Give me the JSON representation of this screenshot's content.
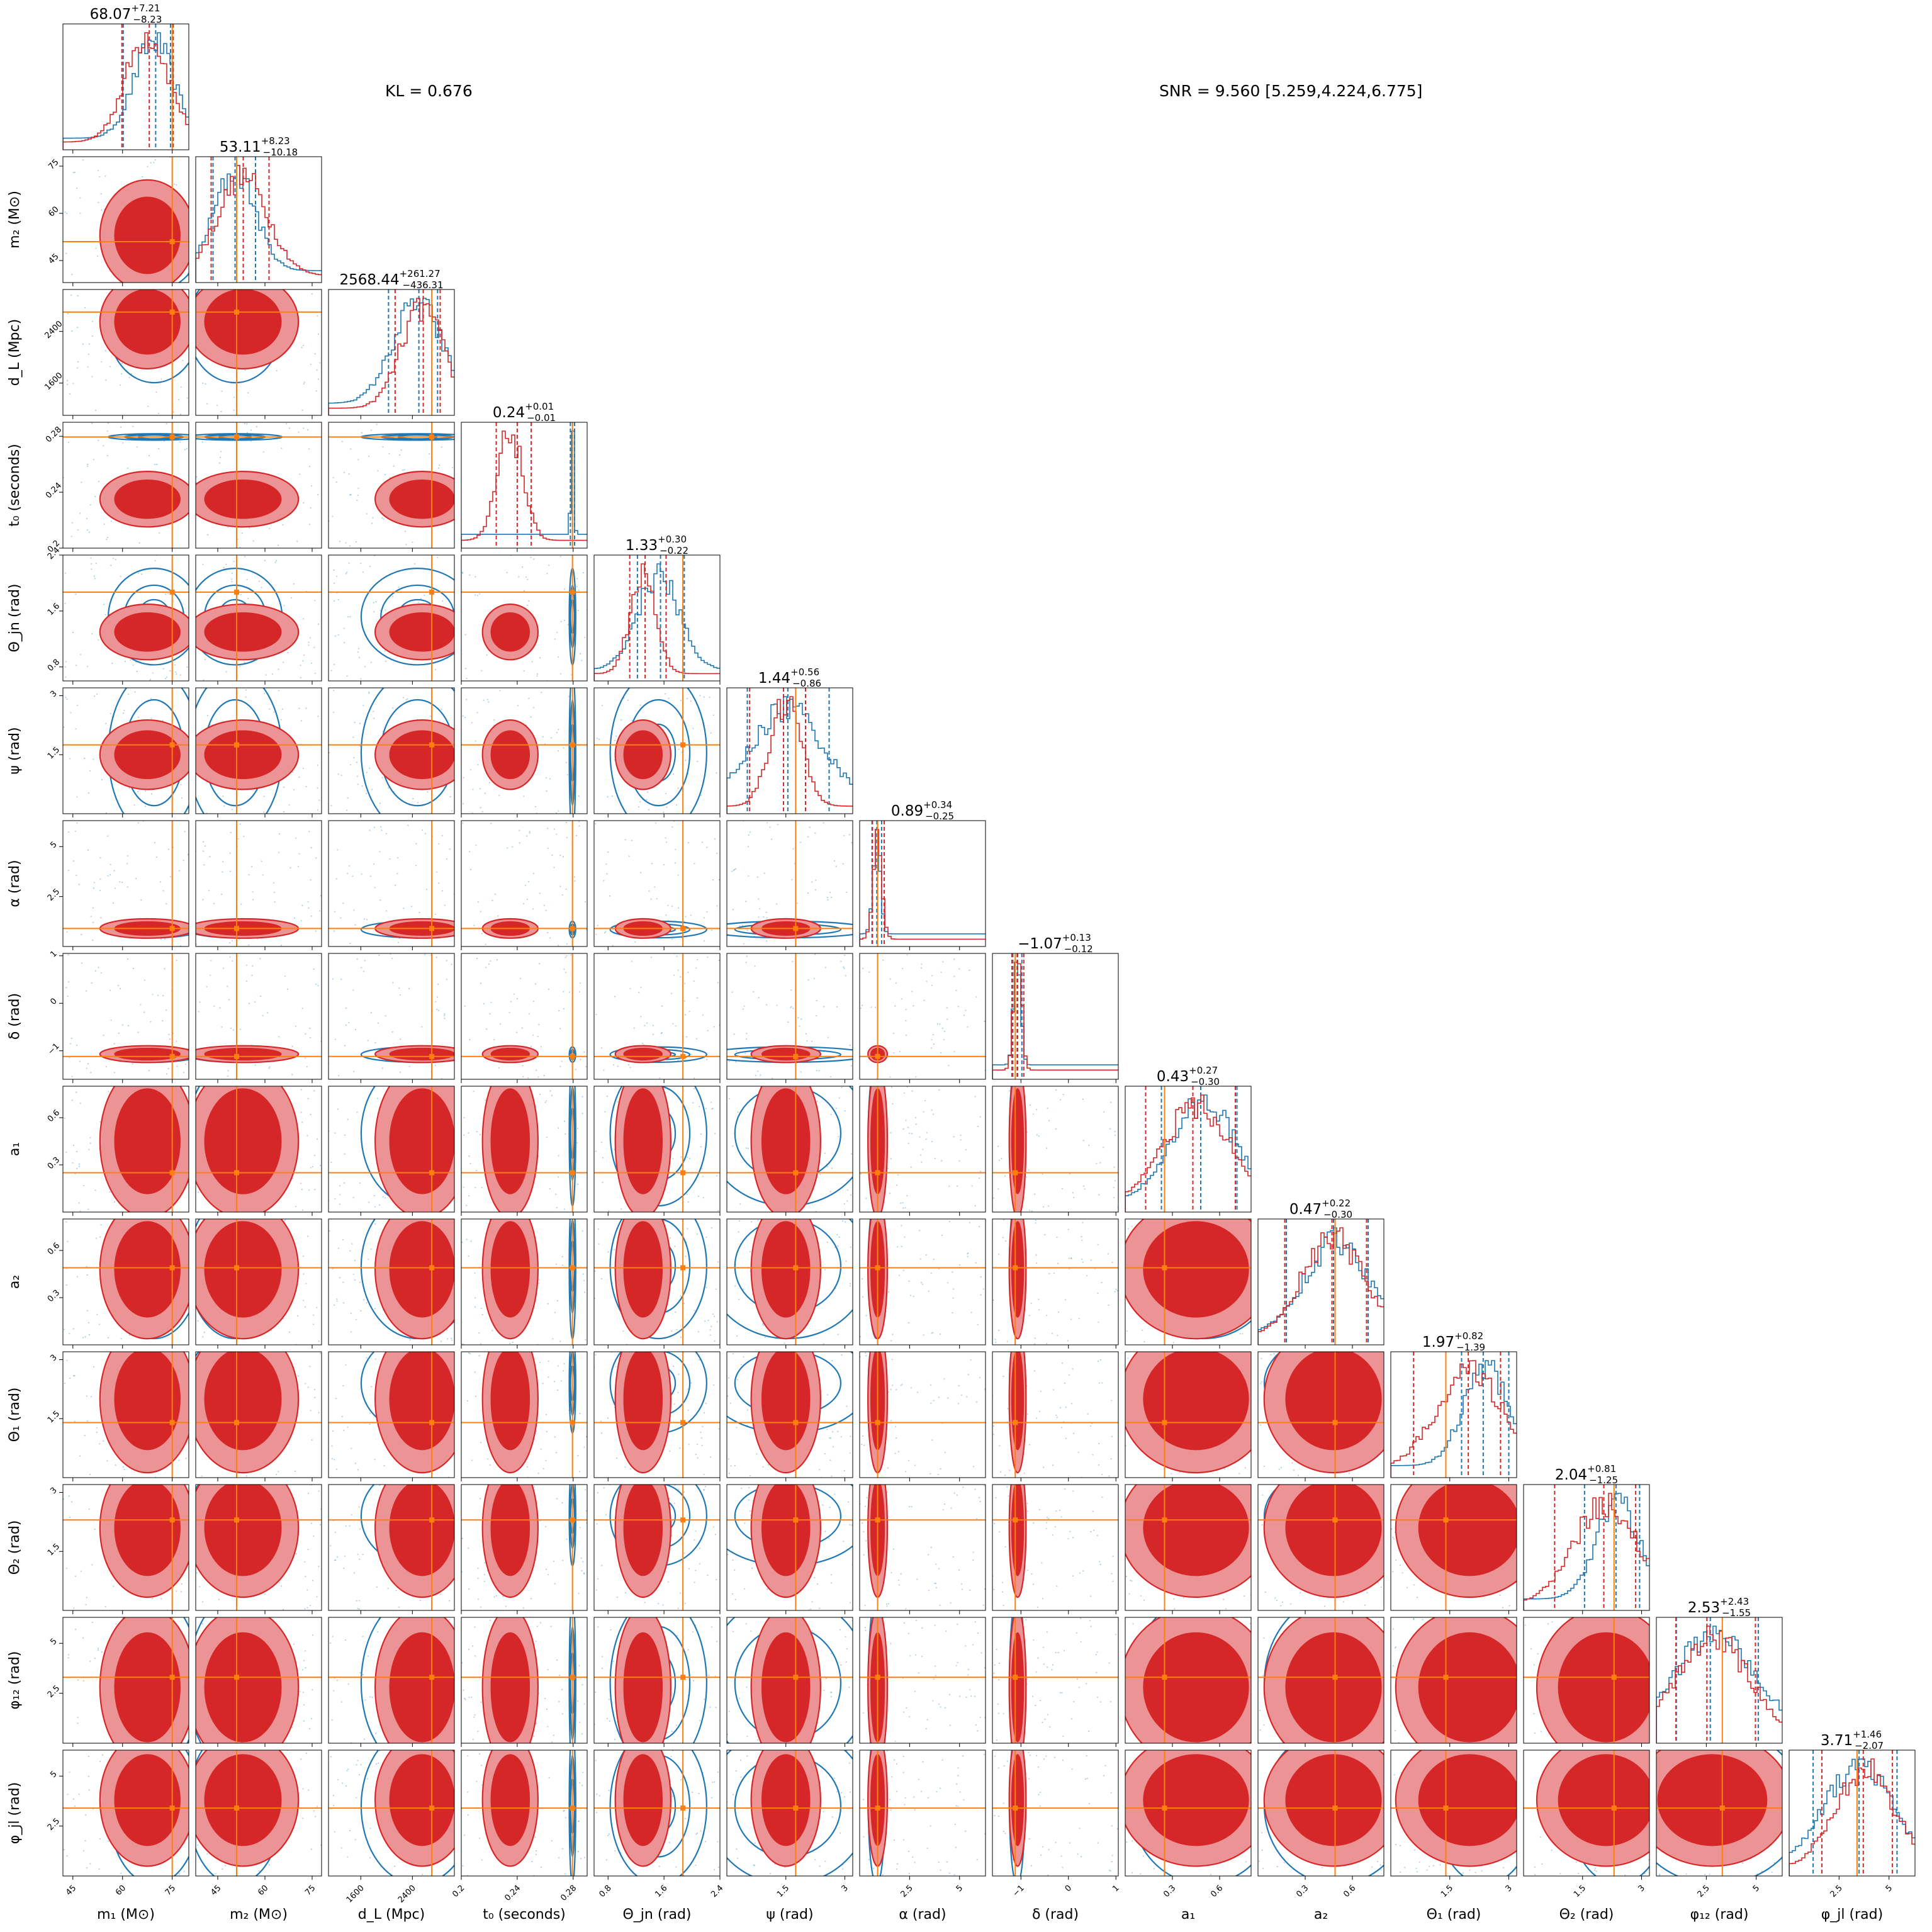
{
  "annotations": {
    "kl": "KL = 0.676",
    "snr": "SNR = 9.560 [5.259,4.224,6.775]"
  },
  "colors": {
    "red": "#d62728",
    "light_red": "#ec9395",
    "blue": "#1f77b4",
    "truth": "#ff7f0e",
    "frame": "#000000"
  },
  "chart_data": {
    "type": "corner",
    "series": [
      {
        "name": "",
        "color": "#d62728"
      },
      {
        "name": "",
        "color": "#1f77b4"
      }
    ],
    "params": [
      {
        "label": "m₁ (M⊙)",
        "range": [
          42,
          80
        ],
        "ticks": [
          45,
          60,
          75
        ],
        "title": "68.07",
        "up": "+7.21",
        "lo": "−8.23",
        "truth": 75.0,
        "q_red": [
          59.8,
          68.07,
          75.3
        ],
        "q_blue": [
          60.2,
          70.0,
          74.5
        ],
        "red_mean": 67.5,
        "red_sd": 6.5,
        "blue_mean": 69.5,
        "blue_sd": 6.0
      },
      {
        "label": "m₂ (M⊙)",
        "range": [
          38,
          78
        ],
        "ticks": [
          45,
          60,
          75
        ],
        "title": "53.11",
        "up": "+8.23",
        "lo": "−10.18",
        "truth": 51.0,
        "q_red": [
          42.9,
          53.11,
          61.3
        ],
        "q_blue": [
          43.5,
          50.5,
          57.0
        ],
        "red_mean": 53.0,
        "red_sd": 8.0,
        "blue_mean": 50.5,
        "blue_sd": 6.5
      },
      {
        "label": "d_L (Mpc)",
        "range": [
          1100,
          3050
        ],
        "ticks": [
          1600,
          2400
        ],
        "title": "2568.44",
        "up": "+261.27",
        "lo": "−436.31",
        "truth": 2700,
        "q_red": [
          2132,
          2568,
          2830
        ],
        "q_blue": [
          2030,
          2500,
          2790
        ],
        "red_mean": 2550,
        "red_sd": 330,
        "blue_mean": 2480,
        "blue_sd": 380
      },
      {
        "label": "t₀ (seconds)",
        "range": [
          0.2,
          0.29
        ],
        "ticks": [
          0.2,
          0.24,
          0.28
        ],
        "title": "0.24",
        "up": "+0.01",
        "lo": "−0.01",
        "truth": 0.2795,
        "q_red": [
          0.225,
          0.24,
          0.25
        ],
        "q_blue": [
          0.278,
          0.2795,
          0.281
        ],
        "red_mean": 0.235,
        "red_sd": 0.009,
        "blue_mean": 0.2795,
        "blue_sd": 0.001
      },
      {
        "label": "Θ_jn (rad)",
        "range": [
          0.6,
          2.4
        ],
        "ticks": [
          0.8,
          1.6,
          2.4
        ],
        "title": "1.33",
        "up": "+0.30",
        "lo": "−0.22",
        "truth": 1.87,
        "q_red": [
          1.11,
          1.33,
          1.63
        ],
        "q_blue": [
          1.22,
          1.55,
          1.89
        ],
        "red_mean": 1.3,
        "red_sd": 0.18,
        "blue_mean": 1.52,
        "blue_sd": 0.3
      },
      {
        "label": "ψ (rad)",
        "range": [
          0,
          3.2
        ],
        "ticks": [
          1.5,
          3.0
        ],
        "title": "1.44",
        "up": "+0.56",
        "lo": "−0.86",
        "truth": 1.75,
        "q_red": [
          0.58,
          1.44,
          2.0
        ],
        "q_blue": [
          0.52,
          1.55,
          2.6
        ],
        "red_mean": 1.5,
        "red_sd": 0.4,
        "blue_mean": 1.55,
        "blue_sd": 0.9
      },
      {
        "label": "α (rad)",
        "range": [
          0,
          6.3
        ],
        "ticks": [
          2.5,
          5.0
        ],
        "title": "0.89",
        "up": "+0.34",
        "lo": "−0.25",
        "truth": 0.9,
        "q_red": [
          0.64,
          0.89,
          1.23
        ],
        "q_blue": [
          0.62,
          0.86,
          1.1
        ],
        "red_mean": 0.9,
        "red_sd": 0.22,
        "blue_mean": 0.85,
        "blue_sd": 0.18
      },
      {
        "label": "δ (rad)",
        "range": [
          -1.6,
          1.05
        ],
        "ticks": [
          -1,
          0,
          1
        ],
        "title": "−1.07",
        "up": "+0.13",
        "lo": "−0.12",
        "truth": -1.12,
        "q_red": [
          -1.19,
          -1.07,
          -0.94
        ],
        "q_blue": [
          -1.17,
          -1.08,
          -0.98
        ],
        "red_mean": -1.07,
        "red_sd": 0.08,
        "blue_mean": -1.08,
        "blue_sd": 0.07
      },
      {
        "label": "a₁",
        "range": [
          0,
          0.8
        ],
        "ticks": [
          0.3,
          0.6
        ],
        "title": "0.43",
        "up": "+0.27",
        "lo": "−0.30",
        "truth": 0.25,
        "q_red": [
          0.13,
          0.43,
          0.7
        ],
        "q_blue": [
          0.23,
          0.48,
          0.71
        ],
        "red_mean": 0.45,
        "red_sd": 0.22,
        "blue_mean": 0.5,
        "blue_sd": 0.2
      },
      {
        "label": "a₂",
        "range": [
          0,
          0.8
        ],
        "ticks": [
          0.3,
          0.6
        ],
        "title": "0.47",
        "up": "+0.22",
        "lo": "−0.30",
        "truth": 0.49,
        "q_red": [
          0.17,
          0.47,
          0.69
        ],
        "q_blue": [
          0.18,
          0.48,
          0.7
        ],
        "red_mean": 0.48,
        "red_sd": 0.2,
        "blue_mean": 0.5,
        "blue_sd": 0.2
      },
      {
        "label": "Θ₁ (rad)",
        "range": [
          0,
          3.2
        ],
        "ticks": [
          1.5,
          3.0
        ],
        "title": "1.97",
        "up": "+0.82",
        "lo": "−1.39",
        "truth": 1.4,
        "q_red": [
          0.58,
          1.97,
          2.79
        ],
        "q_blue": [
          1.8,
          2.35,
          3.0
        ],
        "red_mean": 2.0,
        "red_sd": 0.85,
        "blue_mean": 2.4,
        "blue_sd": 0.55
      },
      {
        "label": "Θ₂ (rad)",
        "range": [
          0,
          3.2
        ],
        "ticks": [
          1.5,
          3.0
        ],
        "title": "2.04",
        "up": "+0.81",
        "lo": "−1.25",
        "truth": 2.3,
        "q_red": [
          0.79,
          2.04,
          2.85
        ],
        "q_blue": [
          1.55,
          2.35,
          2.95
        ],
        "red_mean": 2.1,
        "red_sd": 0.8,
        "blue_mean": 2.4,
        "blue_sd": 0.55
      },
      {
        "label": "φ₁₂ (rad)",
        "range": [
          0,
          6.3
        ],
        "ticks": [
          2.5,
          5.0
        ],
        "title": "2.53",
        "up": "+2.43",
        "lo": "−1.55",
        "truth": 3.3,
        "q_red": [
          0.98,
          2.53,
          4.96
        ],
        "q_blue": [
          1.0,
          2.7,
          5.1
        ],
        "red_mean": 2.8,
        "red_sd": 1.8,
        "blue_mean": 3.0,
        "blue_sd": 1.9
      },
      {
        "label": "φ_jl (rad)",
        "range": [
          0,
          6.3
        ],
        "ticks": [
          2.5,
          5.0
        ],
        "title": "3.71",
        "up": "+1.46",
        "lo": "−2.07",
        "truth": 3.4,
        "q_red": [
          1.64,
          3.71,
          5.17
        ],
        "q_blue": [
          1.2,
          3.5,
          5.4
        ],
        "red_mean": 3.8,
        "red_sd": 1.5,
        "blue_mean": 3.5,
        "blue_sd": 1.7
      }
    ]
  }
}
